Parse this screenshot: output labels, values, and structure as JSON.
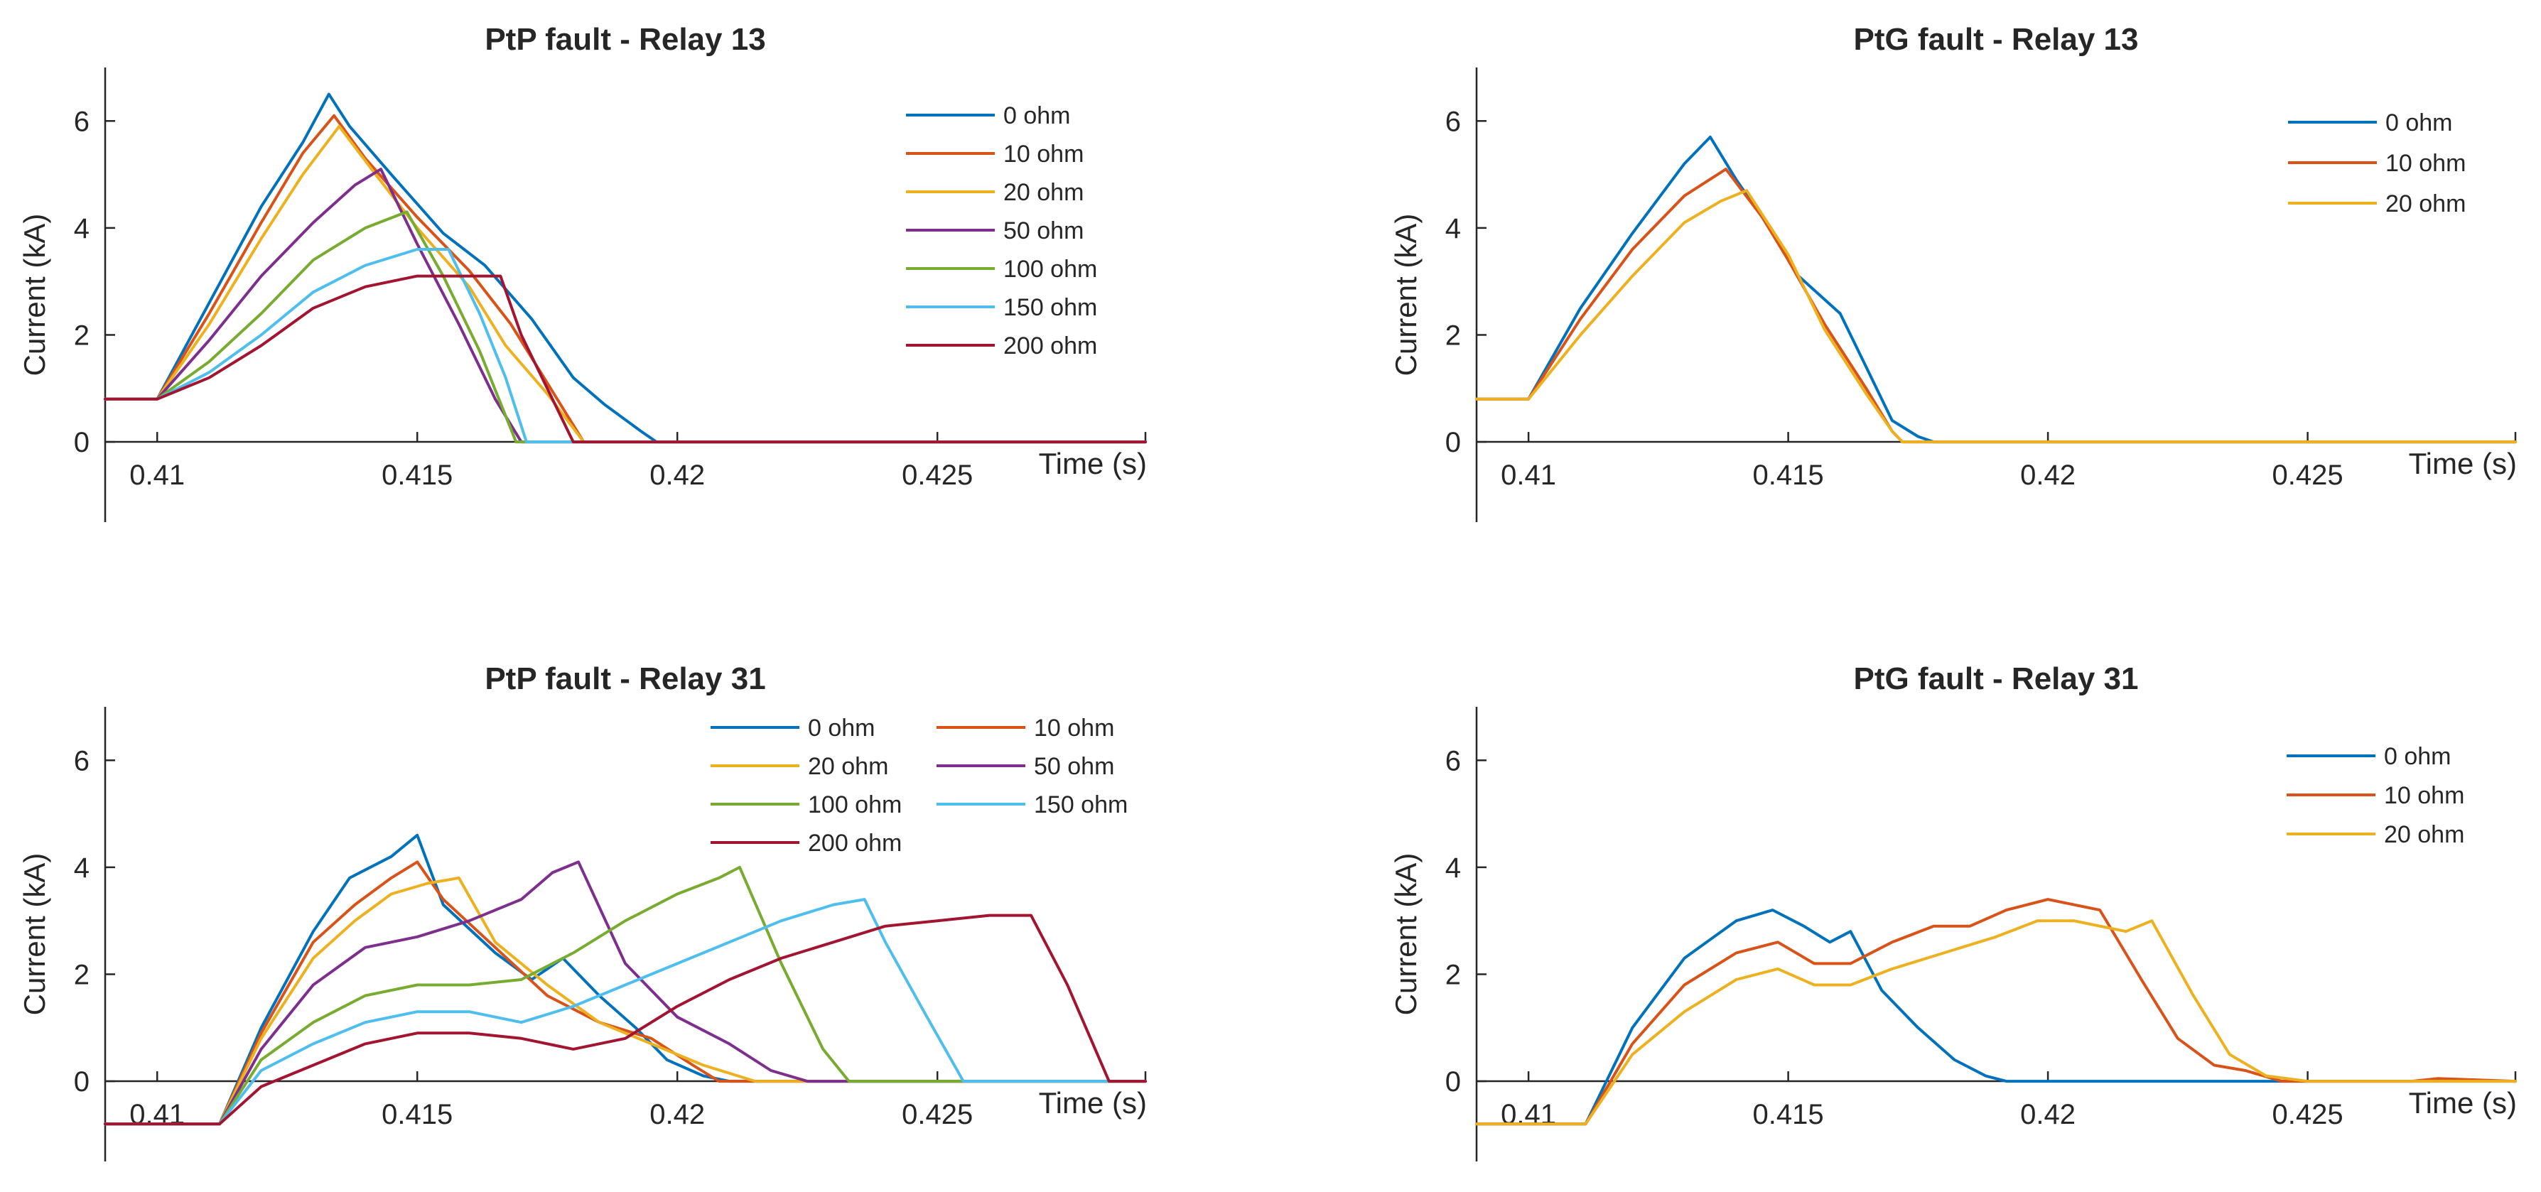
{
  "colors": {
    "c0": "#0072BD",
    "c1": "#D95319",
    "c2": "#EDB120",
    "c3": "#7E2F8E",
    "c4": "#77AC30",
    "c5": "#4DBEEE",
    "c6": "#A2142F"
  },
  "chart_data": [
    {
      "type": "line",
      "title": "PtP fault - Relay 13",
      "xlabel": "Time (s)",
      "ylabel": "Current (kA)",
      "xlim": [
        0.409,
        0.429
      ],
      "ylim": [
        -1.5,
        7
      ],
      "xticks": [
        0.41,
        0.415,
        0.42,
        0.425
      ],
      "xtick_labels": [
        "0.41",
        "0.415",
        "0.42",
        "0.425"
      ],
      "yticks": [
        0,
        2,
        4,
        6
      ],
      "ytick_labels": [
        "0",
        "2",
        "4",
        "6"
      ],
      "legend_position": "top-right",
      "legend_columns": 1,
      "series": [
        {
          "name": "0 ohm",
          "color": "#0072BD",
          "x": [
            0.409,
            0.41,
            0.411,
            0.412,
            0.4128,
            0.4133,
            0.4137,
            0.4145,
            0.4155,
            0.4163,
            0.4172,
            0.418,
            0.4186,
            0.4193,
            0.4196,
            0.429
          ],
          "y": [
            0.8,
            0.8,
            2.6,
            4.4,
            5.6,
            6.5,
            5.9,
            5.0,
            3.9,
            3.3,
            2.3,
            1.2,
            0.7,
            0.2,
            0.0,
            0.0
          ]
        },
        {
          "name": "10 ohm",
          "color": "#D95319",
          "x": [
            0.409,
            0.41,
            0.411,
            0.412,
            0.4128,
            0.4134,
            0.414,
            0.415,
            0.416,
            0.4168,
            0.4175,
            0.4182,
            0.429
          ],
          "y": [
            0.8,
            0.8,
            2.4,
            4.1,
            5.4,
            6.1,
            5.3,
            4.2,
            3.2,
            2.2,
            1.1,
            0.0,
            0.0
          ]
        },
        {
          "name": "20 ohm",
          "color": "#EDB120",
          "x": [
            0.409,
            0.41,
            0.411,
            0.412,
            0.4128,
            0.4135,
            0.4142,
            0.415,
            0.416,
            0.4167,
            0.4175,
            0.4182,
            0.429
          ],
          "y": [
            0.8,
            0.8,
            2.2,
            3.8,
            5.0,
            5.9,
            5.0,
            4.0,
            2.9,
            1.8,
            0.9,
            0.0,
            0.0
          ]
        },
        {
          "name": "50 ohm",
          "color": "#7E2F8E",
          "x": [
            0.409,
            0.41,
            0.411,
            0.412,
            0.413,
            0.4138,
            0.4143,
            0.415,
            0.4158,
            0.4165,
            0.417,
            0.429
          ],
          "y": [
            0.8,
            0.8,
            1.9,
            3.1,
            4.1,
            4.8,
            5.1,
            3.7,
            2.2,
            0.8,
            0.0,
            0.0
          ]
        },
        {
          "name": "100 ohm",
          "color": "#77AC30",
          "x": [
            0.409,
            0.41,
            0.411,
            0.412,
            0.413,
            0.414,
            0.4148,
            0.4155,
            0.4162,
            0.4169,
            0.429
          ],
          "y": [
            0.8,
            0.8,
            1.5,
            2.4,
            3.4,
            4.0,
            4.3,
            3.1,
            1.7,
            0.0,
            0.0
          ]
        },
        {
          "name": "150 ohm",
          "color": "#4DBEEE",
          "x": [
            0.409,
            0.41,
            0.411,
            0.412,
            0.413,
            0.414,
            0.415,
            0.4156,
            0.4162,
            0.4167,
            0.4171,
            0.429
          ],
          "y": [
            0.8,
            0.8,
            1.3,
            2.0,
            2.8,
            3.3,
            3.6,
            3.6,
            2.4,
            1.2,
            0.0,
            0.0
          ]
        },
        {
          "name": "200 ohm",
          "color": "#A2142F",
          "x": [
            0.409,
            0.41,
            0.411,
            0.412,
            0.413,
            0.414,
            0.415,
            0.416,
            0.4166,
            0.417,
            0.418,
            0.429
          ],
          "y": [
            0.8,
            0.8,
            1.2,
            1.8,
            2.5,
            2.9,
            3.1,
            3.1,
            3.1,
            2.0,
            0.0,
            0.0
          ]
        }
      ]
    },
    {
      "type": "line",
      "title": "PtG fault - Relay 13",
      "xlabel": "Time (s)",
      "ylabel": "Current (kA)",
      "xlim": [
        0.409,
        0.429
      ],
      "ylim": [
        -1.5,
        7
      ],
      "xticks": [
        0.41,
        0.415,
        0.42,
        0.425
      ],
      "xtick_labels": [
        "0.41",
        "0.415",
        "0.42",
        "0.425"
      ],
      "yticks": [
        0,
        2,
        4,
        6
      ],
      "ytick_labels": [
        "0",
        "2",
        "4",
        "6"
      ],
      "legend_position": "top-right",
      "legend_columns": 1,
      "series": [
        {
          "name": "0 ohm",
          "color": "#0072BD",
          "x": [
            0.409,
            0.41,
            0.411,
            0.412,
            0.413,
            0.4135,
            0.414,
            0.4145,
            0.4152,
            0.416,
            0.4165,
            0.417,
            0.4175,
            0.4178,
            0.429
          ],
          "y": [
            0.8,
            0.8,
            2.5,
            3.9,
            5.2,
            5.7,
            4.9,
            4.2,
            3.1,
            2.4,
            1.4,
            0.4,
            0.1,
            0.0,
            0.0
          ]
        },
        {
          "name": "10 ohm",
          "color": "#D95319",
          "x": [
            0.409,
            0.41,
            0.411,
            0.412,
            0.413,
            0.4138,
            0.4145,
            0.415,
            0.4157,
            0.4165,
            0.417,
            0.4172,
            0.429
          ],
          "y": [
            0.8,
            0.8,
            2.3,
            3.6,
            4.6,
            5.1,
            4.2,
            3.4,
            2.2,
            1.0,
            0.2,
            0.0,
            0.0
          ]
        },
        {
          "name": "20 ohm",
          "color": "#EDB120",
          "x": [
            0.409,
            0.41,
            0.411,
            0.412,
            0.413,
            0.4137,
            0.4142,
            0.415,
            0.4157,
            0.4165,
            0.417,
            0.4172,
            0.429
          ],
          "y": [
            0.8,
            0.8,
            2.0,
            3.1,
            4.1,
            4.5,
            4.7,
            3.5,
            2.1,
            0.9,
            0.2,
            0.0,
            0.0
          ]
        }
      ]
    },
    {
      "type": "line",
      "title": "PtP fault - Relay 31",
      "xlabel": "Time (s)",
      "ylabel": "Current (kA)",
      "xlim": [
        0.409,
        0.429
      ],
      "ylim": [
        -1.5,
        7
      ],
      "xticks": [
        0.41,
        0.415,
        0.42,
        0.425
      ],
      "xtick_labels": [
        "0.41",
        "0.415",
        "0.42",
        "0.425"
      ],
      "yticks": [
        0,
        2,
        4,
        6
      ],
      "ytick_labels": [
        "0",
        "2",
        "4",
        "6"
      ],
      "legend_position": "top-right",
      "legend_columns": 2,
      "series": [
        {
          "name": "0 ohm",
          "color": "#0072BD",
          "x": [
            0.409,
            0.4112,
            0.412,
            0.413,
            0.4137,
            0.4145,
            0.415,
            0.4155,
            0.4165,
            0.4172,
            0.4178,
            0.4185,
            0.4192,
            0.4198,
            0.4205,
            0.421,
            0.429
          ],
          "y": [
            -0.8,
            -0.8,
            1.0,
            2.8,
            3.8,
            4.2,
            4.6,
            3.3,
            2.4,
            1.9,
            2.3,
            1.6,
            1.0,
            0.4,
            0.1,
            0.0,
            0.0
          ]
        },
        {
          "name": "10 ohm",
          "color": "#D95319",
          "x": [
            0.409,
            0.4112,
            0.412,
            0.413,
            0.4138,
            0.4145,
            0.415,
            0.4155,
            0.4165,
            0.4175,
            0.4185,
            0.4195,
            0.4203,
            0.4208,
            0.429
          ],
          "y": [
            -0.8,
            -0.8,
            0.9,
            2.6,
            3.3,
            3.8,
            4.1,
            3.4,
            2.5,
            1.6,
            1.1,
            0.8,
            0.3,
            0.0,
            0.0
          ]
        },
        {
          "name": "20 ohm",
          "color": "#EDB120",
          "x": [
            0.409,
            0.4112,
            0.412,
            0.413,
            0.4138,
            0.4145,
            0.4152,
            0.4158,
            0.4165,
            0.4175,
            0.4185,
            0.4195,
            0.4205,
            0.4215,
            0.429
          ],
          "y": [
            -0.8,
            -0.8,
            0.8,
            2.3,
            3.0,
            3.5,
            3.7,
            3.8,
            2.6,
            1.8,
            1.1,
            0.7,
            0.3,
            0.0,
            0.0
          ]
        },
        {
          "name": "50 ohm",
          "color": "#7E2F8E",
          "x": [
            0.409,
            0.4112,
            0.412,
            0.413,
            0.414,
            0.415,
            0.416,
            0.417,
            0.4176,
            0.4181,
            0.419,
            0.42,
            0.421,
            0.4218,
            0.4225,
            0.429
          ],
          "y": [
            -0.8,
            -0.8,
            0.6,
            1.8,
            2.5,
            2.7,
            3.0,
            3.4,
            3.9,
            4.1,
            2.2,
            1.2,
            0.7,
            0.2,
            0.0,
            0.0
          ]
        },
        {
          "name": "100 ohm",
          "color": "#77AC30",
          "x": [
            0.409,
            0.4112,
            0.412,
            0.413,
            0.414,
            0.415,
            0.416,
            0.417,
            0.418,
            0.419,
            0.42,
            0.4208,
            0.4212,
            0.422,
            0.4228,
            0.4233,
            0.429
          ],
          "y": [
            -0.8,
            -0.8,
            0.4,
            1.1,
            1.6,
            1.8,
            1.8,
            1.9,
            2.4,
            3.0,
            3.5,
            3.8,
            4.0,
            2.2,
            0.6,
            0.0,
            0.0
          ]
        },
        {
          "name": "150 ohm",
          "color": "#4DBEEE",
          "x": [
            0.409,
            0.4112,
            0.412,
            0.413,
            0.414,
            0.415,
            0.416,
            0.417,
            0.418,
            0.419,
            0.42,
            0.421,
            0.422,
            0.423,
            0.4236,
            0.424,
            0.4248,
            0.4255,
            0.429
          ],
          "y": [
            -0.8,
            -0.8,
            0.2,
            0.7,
            1.1,
            1.3,
            1.3,
            1.1,
            1.4,
            1.8,
            2.2,
            2.6,
            3.0,
            3.3,
            3.4,
            2.6,
            1.2,
            0.0,
            0.0
          ]
        },
        {
          "name": "200 ohm",
          "color": "#A2142F",
          "x": [
            0.409,
            0.4112,
            0.412,
            0.413,
            0.414,
            0.415,
            0.416,
            0.417,
            0.418,
            0.419,
            0.42,
            0.421,
            0.422,
            0.423,
            0.424,
            0.425,
            0.426,
            0.4268,
            0.4275,
            0.4283,
            0.429
          ],
          "y": [
            -0.8,
            -0.8,
            -0.1,
            0.3,
            0.7,
            0.9,
            0.9,
            0.8,
            0.6,
            0.8,
            1.4,
            1.9,
            2.3,
            2.6,
            2.9,
            3.0,
            3.1,
            3.1,
            1.8,
            0.0,
            0.0
          ]
        }
      ]
    },
    {
      "type": "line",
      "title": "PtG fault - Relay 31",
      "xlabel": "Time (s)",
      "ylabel": "Current (kA)",
      "xlim": [
        0.409,
        0.429
      ],
      "ylim": [
        -1.5,
        7
      ],
      "xticks": [
        0.41,
        0.415,
        0.42,
        0.425
      ],
      "xtick_labels": [
        "0.41",
        "0.415",
        "0.42",
        "0.425"
      ],
      "yticks": [
        0,
        2,
        4,
        6
      ],
      "ytick_labels": [
        "0",
        "2",
        "4",
        "6"
      ],
      "legend_position": "top-right",
      "legend_columns": 1,
      "series": [
        {
          "name": "0 ohm",
          "color": "#0072BD",
          "x": [
            0.409,
            0.4111,
            0.412,
            0.413,
            0.414,
            0.4147,
            0.4153,
            0.4158,
            0.4162,
            0.4168,
            0.4175,
            0.4182,
            0.4188,
            0.4192,
            0.429
          ],
          "y": [
            -0.8,
            -0.8,
            1.0,
            2.3,
            3.0,
            3.2,
            2.9,
            2.6,
            2.8,
            1.7,
            1.0,
            0.4,
            0.1,
            0.0,
            0.0
          ]
        },
        {
          "name": "10 ohm",
          "color": "#D95319",
          "x": [
            0.409,
            0.4111,
            0.412,
            0.413,
            0.414,
            0.4148,
            0.4155,
            0.4162,
            0.417,
            0.4178,
            0.4185,
            0.4192,
            0.42,
            0.4205,
            0.421,
            0.4218,
            0.4225,
            0.4232,
            0.4238,
            0.4245,
            0.427,
            0.4275,
            0.429
          ],
          "y": [
            -0.8,
            -0.8,
            0.7,
            1.8,
            2.4,
            2.6,
            2.2,
            2.2,
            2.6,
            2.9,
            2.9,
            3.2,
            3.4,
            3.3,
            3.2,
            1.9,
            0.8,
            0.3,
            0.2,
            0.0,
            0.0,
            0.05,
            0.0
          ]
        },
        {
          "name": "20 ohm",
          "color": "#EDB120",
          "x": [
            0.409,
            0.4111,
            0.412,
            0.413,
            0.414,
            0.4148,
            0.4155,
            0.4162,
            0.417,
            0.418,
            0.419,
            0.4198,
            0.4205,
            0.4215,
            0.422,
            0.4228,
            0.4235,
            0.4242,
            0.425,
            0.429
          ],
          "y": [
            -0.8,
            -0.8,
            0.5,
            1.3,
            1.9,
            2.1,
            1.8,
            1.8,
            2.1,
            2.4,
            2.7,
            3.0,
            3.0,
            2.8,
            3.0,
            1.6,
            0.5,
            0.1,
            0.0,
            0.0
          ]
        }
      ]
    }
  ]
}
